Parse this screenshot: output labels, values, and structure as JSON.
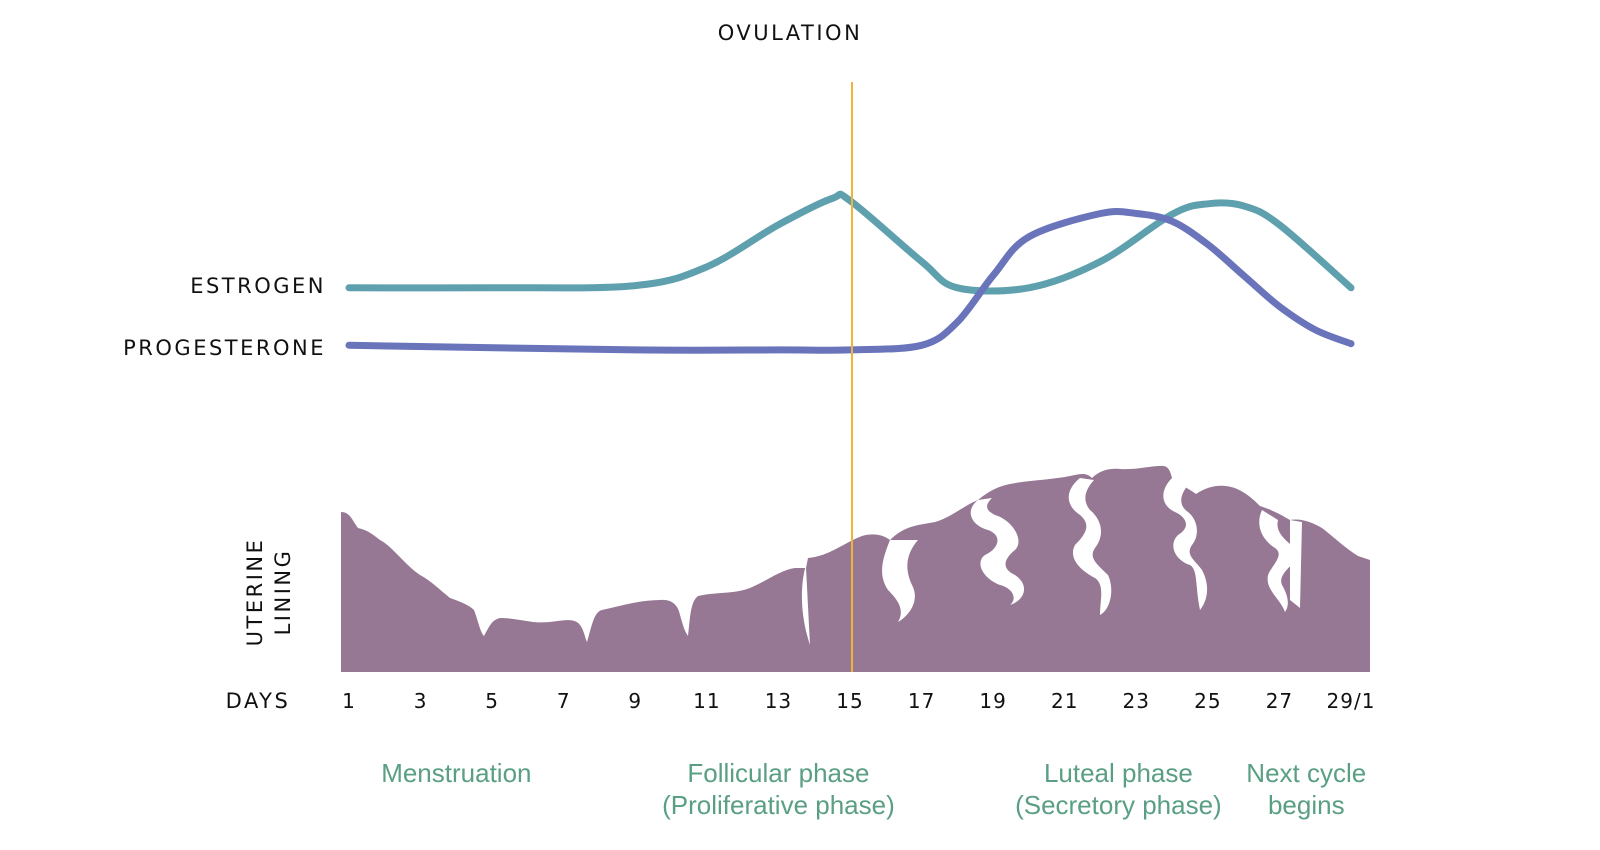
{
  "colors": {
    "estrogen": "#5fa0ae",
    "progesterone": "#6a74bb",
    "ovulation_line": "#f0b33c",
    "uterine_lining": "#967894",
    "phase_text": "#5a9f84",
    "text": "#111111"
  },
  "chart_data": {
    "type": "line",
    "title": "OVULATION",
    "xlabel": "DAYS",
    "ylabel": "",
    "x_tick_labels": [
      "1",
      "3",
      "5",
      "7",
      "9",
      "11",
      "13",
      "15",
      "17",
      "19",
      "21",
      "23",
      "25",
      "27",
      "29/1"
    ],
    "x_range": [
      1,
      29
    ],
    "ovulation_day": 15,
    "series": [
      {
        "name": "ESTROGEN",
        "x": [
          1,
          5,
          9,
          11,
          13,
          14.5,
          15,
          17,
          18,
          20,
          22,
          24,
          25,
          26,
          27,
          29
        ],
        "values": [
          0.05,
          0.05,
          0.07,
          0.25,
          0.65,
          0.9,
          0.88,
          0.3,
          0.05,
          0.05,
          0.3,
          0.75,
          0.85,
          0.83,
          0.65,
          0.05
        ]
      },
      {
        "name": "PROGESTERONE",
        "x": [
          1,
          9,
          13,
          15,
          17,
          18,
          19,
          20,
          22,
          23,
          24,
          25,
          26,
          27,
          28,
          29
        ],
        "values": [
          0.05,
          0.02,
          0.02,
          0.02,
          0.05,
          0.2,
          0.5,
          0.75,
          0.9,
          0.9,
          0.85,
          0.7,
          0.5,
          0.3,
          0.15,
          0.06
        ]
      }
    ],
    "area": {
      "name": "UTERINE LINING",
      "label_lines": [
        "UTERINE",
        "LINING"
      ]
    },
    "phases": [
      {
        "lines": [
          "Menstruation"
        ],
        "center_day": 4
      },
      {
        "lines": [
          "Follicular phase",
          "(Proliferative phase)"
        ],
        "center_day": 13
      },
      {
        "lines": [
          "Luteal phase",
          "(Secretory phase)"
        ],
        "center_day": 22.5
      },
      {
        "lines": [
          "Next cycle",
          "begins"
        ],
        "center_day": 27.75
      }
    ]
  }
}
